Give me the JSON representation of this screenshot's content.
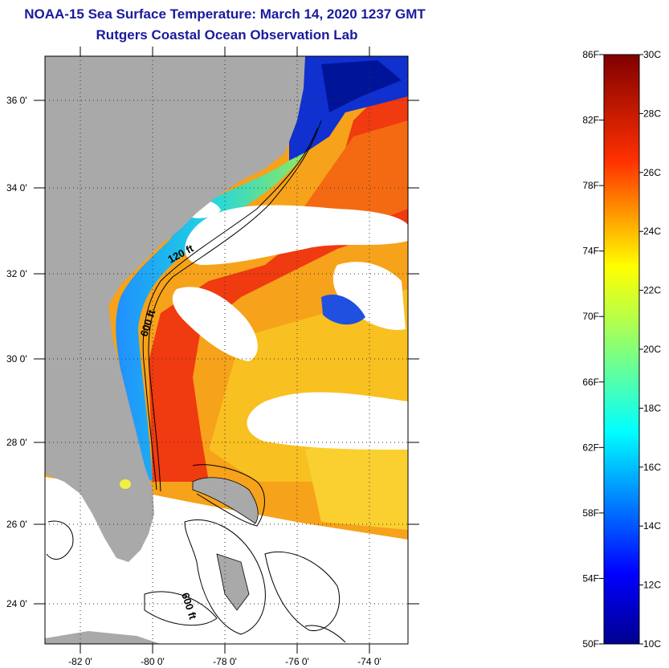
{
  "title": {
    "line1": "NOAA-15 Sea Surface Temperature:  March 14, 2020 1237 GMT",
    "line2": "Rutgers Coastal Ocean Observation Lab"
  },
  "map": {
    "lat_ticks": [
      "36 0'",
      "34 0'",
      "32 0'",
      "30 0'",
      "28 0'",
      "26 0'",
      "24 0'"
    ],
    "lon_ticks": [
      "-82 0'",
      "-80 0'",
      "-78 0'",
      "-76 0'",
      "-74 0'"
    ],
    "contour_labels": [
      "120 ft",
      "600 ft",
      "600 ft"
    ],
    "colors": {
      "land": "#a9a9a9",
      "nodata": "#ffffff",
      "warm": "#f03a10",
      "cool": "#1a70f0"
    }
  },
  "colorbar": {
    "f_labels": [
      "86F",
      "82F",
      "78F",
      "74F",
      "70F",
      "66F",
      "62F",
      "58F",
      "54F",
      "50F"
    ],
    "c_labels": [
      "30C",
      "28C",
      "26C",
      "24C",
      "22C",
      "20C",
      "18C",
      "16C",
      "14C",
      "12C",
      "10C"
    ],
    "f_range": [
      50,
      86
    ],
    "c_range": [
      10,
      30
    ]
  }
}
